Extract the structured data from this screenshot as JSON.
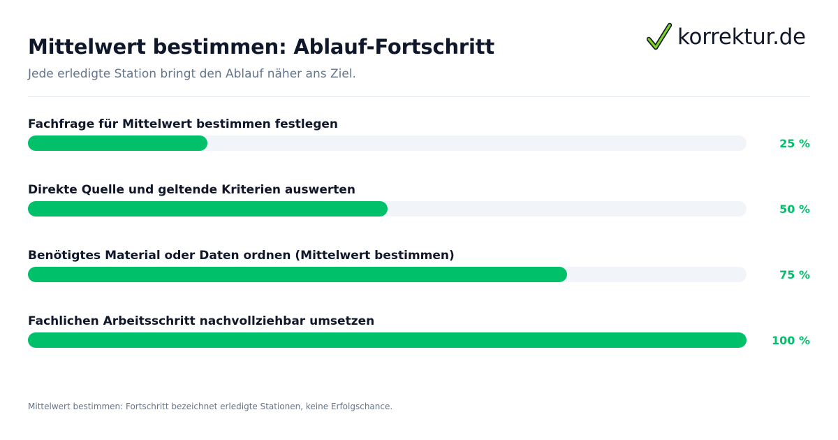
{
  "header": {
    "title": "Mittelwert bestimmen: Ablauf-Fortschritt",
    "subtitle": "Jede erledigte Station bringt den Ablauf näher ans Ziel."
  },
  "logo": {
    "text": "korrektur.de",
    "icon": "checkmark-icon"
  },
  "footnote": "Mittelwert bestimmen: Fortschritt bezeichnet erledigte Stationen, keine Erfolgschance.",
  "colors": {
    "accent": "#00c16a",
    "track": "#f1f5f9",
    "title": "#0f172a",
    "muted": "#64748b"
  },
  "chart_data": {
    "type": "bar",
    "orientation": "horizontal",
    "categories": [
      "Fachfrage für Mittelwert bestimmen festlegen",
      "Direkte Quelle und geltende Kriterien auswerten",
      "Benötigtes Material oder Daten ordnen (Mittelwert bestimmen)",
      "Fachlichen Arbeitsschritt nachvollziehbar umsetzen"
    ],
    "values": [
      25,
      50,
      75,
      100
    ],
    "value_labels": [
      "25 %",
      "50 %",
      "75 %",
      "100 %"
    ],
    "xlim": [
      0,
      100
    ],
    "grid": false
  }
}
